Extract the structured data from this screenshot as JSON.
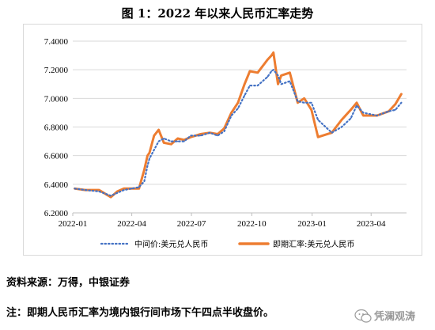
{
  "title": "图 1：2022 年以来人民币汇率走势",
  "source_note": "资料来源：万得，中银证券",
  "footnote": "注：即期人民币汇率为境内银行间市场下午四点半收盘价。",
  "watermark": "凭澜观涛",
  "colors": {
    "central_parity": "#4472C4",
    "spot": "#ED7D31",
    "gridline": "#d9d9d9",
    "axis": "#bfbfbf"
  },
  "chart_data": {
    "type": "line",
    "title": "",
    "xlabel": "",
    "ylabel": "",
    "ylim": [
      6.2,
      7.4
    ],
    "y_ticks": [
      "6.2000",
      "6.4000",
      "6.6000",
      "6.8000",
      "7.0000",
      "7.2000",
      "7.4000"
    ],
    "x_ticks": [
      "2022-01",
      "2022-04",
      "2022-07",
      "2022-10",
      "2023-01",
      "2023-04"
    ],
    "x": [
      "2022-01-04",
      "2022-01-20",
      "2022-02-10",
      "2022-02-28",
      "2022-03-10",
      "2022-03-20",
      "2022-04-01",
      "2022-04-12",
      "2022-04-20",
      "2022-04-25",
      "2022-04-28",
      "2022-05-05",
      "2022-05-12",
      "2022-05-20",
      "2022-05-31",
      "2022-06-10",
      "2022-06-20",
      "2022-06-30",
      "2022-07-15",
      "2022-07-29",
      "2022-08-10",
      "2022-08-20",
      "2022-08-31",
      "2022-09-10",
      "2022-09-20",
      "2022-09-28",
      "2022-10-10",
      "2022-10-25",
      "2022-10-31",
      "2022-11-03",
      "2022-11-10",
      "2022-11-15",
      "2022-11-28",
      "2022-12-10",
      "2022-12-20",
      "2022-12-31",
      "2023-01-10",
      "2023-01-31",
      "2023-02-15",
      "2023-03-01",
      "2023-03-10",
      "2023-03-20",
      "2023-04-10",
      "2023-04-28",
      "2023-05-08",
      "2023-05-17"
    ],
    "series": [
      {
        "name": "中间价:美元兑人民币",
        "style": "dotted",
        "values": [
          6.37,
          6.36,
          6.35,
          6.32,
          6.34,
          6.36,
          6.37,
          6.38,
          6.42,
          6.53,
          6.58,
          6.64,
          6.7,
          6.72,
          6.7,
          6.7,
          6.7,
          6.74,
          6.74,
          6.76,
          6.74,
          6.77,
          6.88,
          6.93,
          7.02,
          7.09,
          7.09,
          7.15,
          7.19,
          7.2,
          7.16,
          7.1,
          7.12,
          6.98,
          6.97,
          6.97,
          6.85,
          6.76,
          6.8,
          6.86,
          6.95,
          6.9,
          6.88,
          6.91,
          6.92,
          6.97
        ]
      },
      {
        "name": "即期汇率:美元兑人民币",
        "style": "solid",
        "values": [
          6.37,
          6.36,
          6.36,
          6.31,
          6.35,
          6.37,
          6.37,
          6.37,
          6.5,
          6.6,
          6.62,
          6.74,
          6.78,
          6.69,
          6.68,
          6.72,
          6.71,
          6.73,
          6.75,
          6.76,
          6.75,
          6.79,
          6.9,
          6.97,
          7.1,
          7.19,
          7.18,
          7.27,
          7.3,
          7.32,
          7.1,
          7.16,
          7.18,
          6.97,
          7.0,
          6.92,
          6.73,
          6.76,
          6.85,
          6.92,
          6.97,
          6.88,
          6.88,
          6.91,
          6.96,
          7.03
        ]
      }
    ],
    "legend": "bottom"
  }
}
